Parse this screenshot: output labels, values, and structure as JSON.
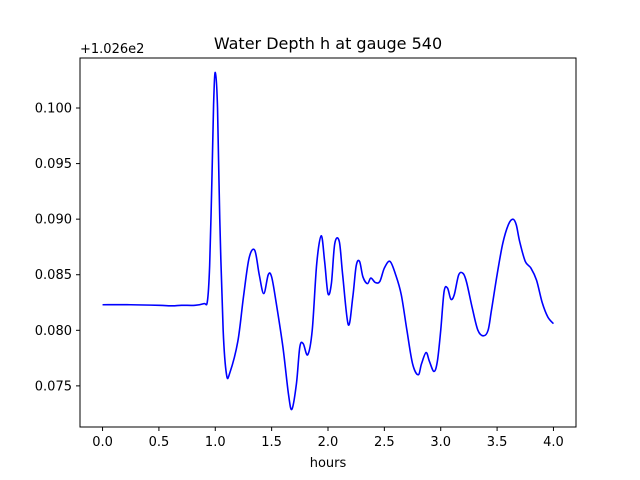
{
  "chart_data": {
    "type": "line",
    "title": "Water Depth h at gauge 540",
    "xlabel": "hours",
    "ylabel": "",
    "y_offset_label": "+1.026e2",
    "xlim": [
      -0.2,
      4.2
    ],
    "ylim": [
      0.0713,
      0.1045
    ],
    "x_ticks": [
      0.0,
      0.5,
      1.0,
      1.5,
      2.0,
      2.5,
      3.0,
      3.5,
      4.0
    ],
    "x_tick_labels": [
      "0.0",
      "0.5",
      "1.0",
      "1.5",
      "2.0",
      "2.5",
      "3.0",
      "3.5",
      "4.0"
    ],
    "y_ticks": [
      0.075,
      0.08,
      0.085,
      0.09,
      0.095,
      0.1
    ],
    "y_tick_labels": [
      "0.075",
      "0.080",
      "0.085",
      "0.090",
      "0.095",
      "0.100"
    ],
    "grid": false,
    "series": [
      {
        "color": "#0000ff",
        "x": [
          0.0,
          0.25,
          0.5,
          0.62,
          0.7,
          0.82,
          0.9,
          0.93,
          0.95,
          0.97,
          0.985,
          1.0,
          1.02,
          1.04,
          1.07,
          1.1,
          1.13,
          1.2,
          1.25,
          1.3,
          1.35,
          1.39,
          1.43,
          1.47,
          1.5,
          1.54,
          1.6,
          1.65,
          1.68,
          1.72,
          1.75,
          1.78,
          1.82,
          1.86,
          1.9,
          1.94,
          1.97,
          2.0,
          2.03,
          2.06,
          2.1,
          2.13,
          2.18,
          2.22,
          2.25,
          2.28,
          2.31,
          2.35,
          2.38,
          2.42,
          2.46,
          2.5,
          2.55,
          2.6,
          2.65,
          2.7,
          2.75,
          2.8,
          2.83,
          2.87,
          2.9,
          2.94,
          2.97,
          3.0,
          3.03,
          3.06,
          3.09,
          3.12,
          3.16,
          3.2,
          3.23,
          3.28,
          3.33,
          3.38,
          3.42,
          3.45,
          3.5,
          3.55,
          3.6,
          3.64,
          3.67,
          3.7,
          3.75,
          3.8,
          3.85,
          3.9,
          3.95,
          4.0
        ],
        "y": [
          0.0823,
          0.0823,
          0.08225,
          0.0822,
          0.08225,
          0.08225,
          0.0824,
          0.0826,
          0.0858,
          0.0935,
          0.1003,
          0.1032,
          0.1,
          0.09,
          0.08,
          0.076,
          0.0762,
          0.079,
          0.083,
          0.0865,
          0.0872,
          0.085,
          0.0833,
          0.085,
          0.0848,
          0.0825,
          0.0785,
          0.0742,
          0.0729,
          0.0752,
          0.0785,
          0.0788,
          0.0778,
          0.08,
          0.086,
          0.0885,
          0.0862,
          0.0833,
          0.0842,
          0.0878,
          0.088,
          0.085,
          0.0805,
          0.083,
          0.0858,
          0.0862,
          0.0848,
          0.0842,
          0.0847,
          0.0843,
          0.0844,
          0.0856,
          0.0862,
          0.085,
          0.0832,
          0.08,
          0.077,
          0.076,
          0.077,
          0.078,
          0.0772,
          0.0763,
          0.0772,
          0.08,
          0.0835,
          0.0838,
          0.0828,
          0.0832,
          0.085,
          0.0851,
          0.0843,
          0.082,
          0.08,
          0.0795,
          0.08,
          0.0818,
          0.085,
          0.0878,
          0.0895,
          0.09,
          0.0895,
          0.088,
          0.0862,
          0.0856,
          0.0845,
          0.0825,
          0.0812,
          0.0806
        ]
      }
    ]
  }
}
